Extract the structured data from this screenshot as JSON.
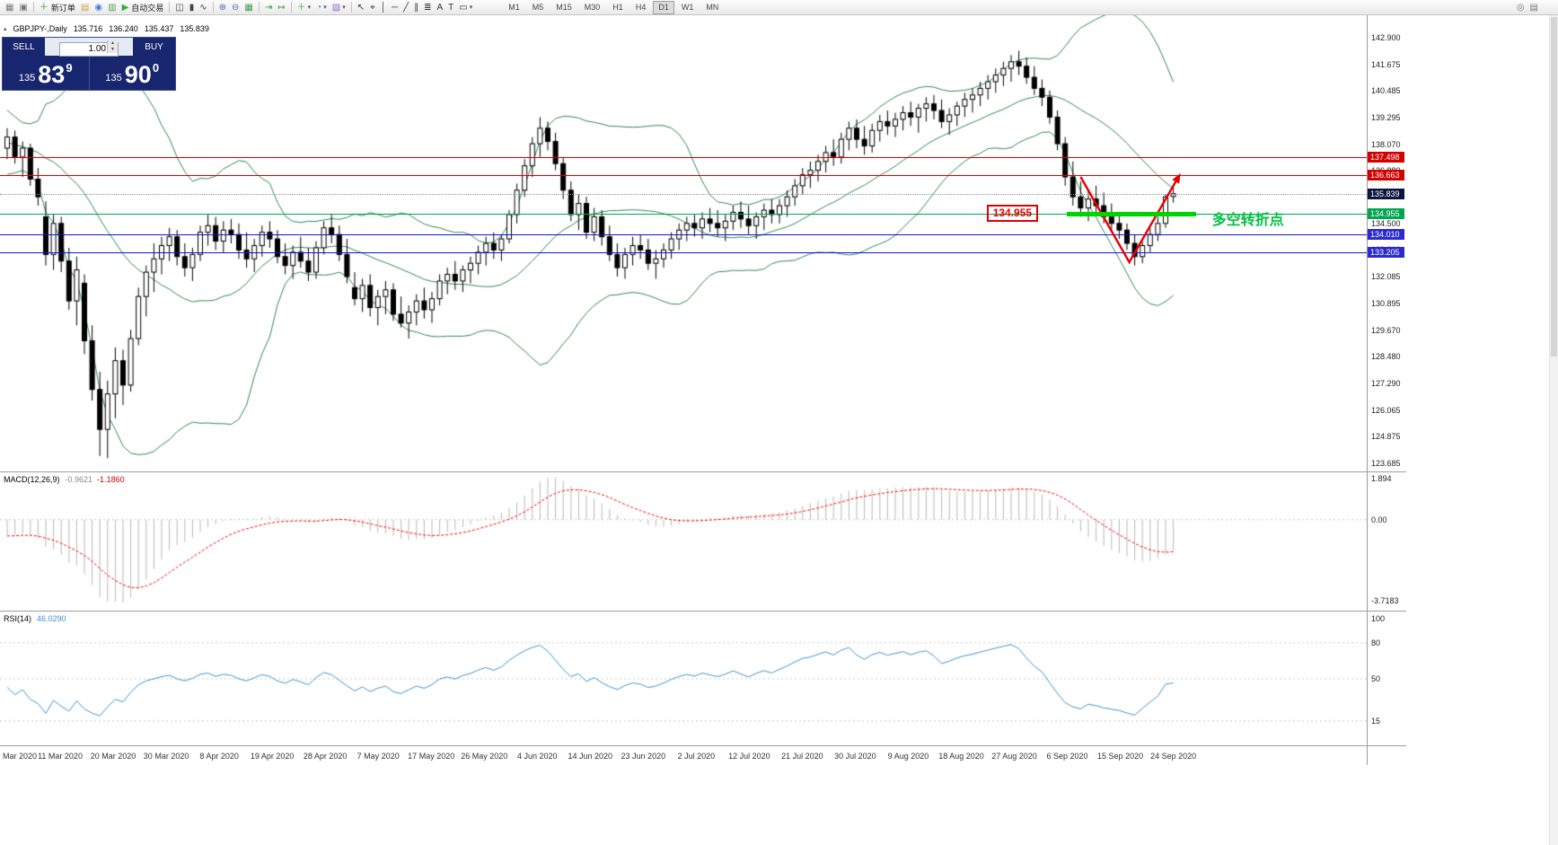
{
  "toolbar": {
    "items": [
      {
        "t": "btn",
        "name": "new-chart-icon",
        "g": "▦",
        "c": "#7a7a7a"
      },
      {
        "t": "btn",
        "name": "profiles-icon",
        "g": "▣",
        "c": "#7a7a7a"
      },
      {
        "t": "sep"
      },
      {
        "t": "txt",
        "name": "new-order-button",
        "g": "＋",
        "c": "#1f9d2f",
        "label": "新订单"
      },
      {
        "t": "btn",
        "name": "market-watch-icon",
        "g": "▤",
        "c": "#caa43c"
      },
      {
        "t": "btn",
        "name": "data-window-icon",
        "g": "◉",
        "c": "#4a78d6"
      },
      {
        "t": "btn",
        "name": "terminal-icon",
        "g": "▥",
        "c": "#58a058"
      },
      {
        "t": "txt",
        "name": "autotrade-button",
        "g": "▶",
        "c": "#2fae3e",
        "label": "自动交易"
      },
      {
        "t": "sep"
      },
      {
        "t": "btn",
        "name": "bar-chart-type-icon",
        "g": "◫",
        "c": "#444444"
      },
      {
        "t": "btn",
        "name": "candlestick-type-icon",
        "g": "▮",
        "c": "#444444"
      },
      {
        "t": "btn",
        "name": "line-chart-type-icon",
        "g": "∿",
        "c": "#444444"
      },
      {
        "t": "sep"
      },
      {
        "t": "btn",
        "name": "zoom-in-icon",
        "g": "⊕",
        "c": "#4a6fb5"
      },
      {
        "t": "btn",
        "name": "zoom-out-icon",
        "g": "⊖",
        "c": "#4a6fb5"
      },
      {
        "t": "btn",
        "name": "tile-windows-icon",
        "g": "▦",
        "c": "#3f9e3f"
      },
      {
        "t": "sep"
      },
      {
        "t": "btn",
        "name": "auto-scroll-icon",
        "g": "⇥",
        "c": "#3f9e3f"
      },
      {
        "t": "btn",
        "name": "chart-shift-icon",
        "g": "↦",
        "c": "#3f9e3f"
      },
      {
        "t": "sep"
      },
      {
        "t": "dd",
        "name": "indicators-menu",
        "g": "＋",
        "c": "#2fae3e"
      },
      {
        "t": "dd",
        "name": "periods-menu",
        "g": "◔",
        "c": "#4a78d6"
      },
      {
        "t": "dd",
        "name": "templates-menu",
        "g": "▨",
        "c": "#8a6fc0"
      },
      {
        "t": "sep"
      },
      {
        "t": "btn",
        "name": "cursor-tool-icon",
        "g": "↖",
        "c": "#333333"
      },
      {
        "t": "btn",
        "name": "crosshair-tool-icon",
        "g": "⌖",
        "c": "#333333"
      },
      {
        "t": "btn",
        "name": "vertical-line-tool-icon",
        "g": "│",
        "c": "#333333"
      },
      {
        "t": "btn",
        "name": "horizontal-line-tool-icon",
        "g": "─",
        "c": "#333333"
      },
      {
        "t": "btn",
        "name": "trendline-tool-icon",
        "g": "╱",
        "c": "#333333"
      },
      {
        "t": "btn",
        "name": "channel-tool-icon",
        "g": "∥",
        "c": "#333333"
      },
      {
        "t": "btn",
        "name": "fibonacci-tool-icon",
        "g": "≣",
        "c": "#333333"
      },
      {
        "t": "btn",
        "name": "text-tool-icon",
        "g": "A",
        "c": "#333333"
      },
      {
        "t": "btn",
        "name": "label-tool-icon",
        "g": "T",
        "c": "#333333"
      },
      {
        "t": "dd",
        "name": "shapes-menu",
        "g": "▭",
        "c": "#333333"
      }
    ],
    "timeframes": [
      "M1",
      "M5",
      "M15",
      "M30",
      "H1",
      "H4",
      "D1",
      "W1",
      "MN"
    ],
    "active_timeframe": "D1",
    "right_icons": [
      {
        "name": "search-icon",
        "g": "◎"
      },
      {
        "name": "alerts-icon",
        "g": "▤"
      }
    ]
  },
  "chart": {
    "symbol": "GBPJPY-,Daily",
    "open": "135.716",
    "high": "136.240",
    "low": "135.437",
    "close": "135.839"
  },
  "trade_panel": {
    "sell_label": "SELL",
    "buy_label": "BUY",
    "volume": "1.00",
    "bid_main": "135",
    "bid_big": "83",
    "bid_sup": "9",
    "ask_main": "135",
    "ask_big": "90",
    "ask_sup": "0"
  },
  "price_axis": {
    "labels": [
      "142.900",
      "141.675",
      "140.485",
      "139.295",
      "138.070",
      "136.880",
      "135.690",
      "134.500",
      "133.310",
      "132.085",
      "130.895",
      "129.670",
      "128.480",
      "127.290",
      "126.065",
      "124.875",
      "123.685"
    ]
  },
  "levels": [
    {
      "price": 137.498,
      "line_color": "#e00000",
      "line_style": "solid",
      "tag_bg": "#d40000"
    },
    {
      "price": 136.663,
      "line_color": "#e00000",
      "line_style": "solid",
      "tag_bg": "#d40000"
    },
    {
      "price": 135.839,
      "line_color": "#8a94a8",
      "line_style": "dotted",
      "tag_bg": "#0c1540"
    },
    {
      "price": 134.955,
      "line_color": "#00a651",
      "line_style": "solid",
      "tag_bg": "#00a651"
    },
    {
      "price": 134.01,
      "line_color": "#1515d0",
      "line_style": "solid",
      "tag_bg": "#2a2ad0"
    },
    {
      "price": 133.205,
      "line_color": "#1515d0",
      "line_style": "solid",
      "tag_bg": "#2a2ad0"
    }
  ],
  "annotations": {
    "price_box": {
      "text": "134.955",
      "price": 134.955,
      "index": 134.5
    },
    "support_segment": {
      "price": 134.955,
      "from_index": 137.2,
      "to_index": 154,
      "color": "#00d400"
    },
    "v_arrow": {
      "color": "#e80000",
      "points": [
        [
          139,
          136.6
        ],
        [
          145.3,
          132.75
        ],
        [
          151.6,
          136.56
        ]
      ]
    },
    "note": {
      "text": "多空转折点",
      "index": 156,
      "price": 134.85,
      "color": "#00bf40"
    }
  },
  "macd": {
    "label": "MACD(12,26,9)",
    "main_value": "-0.9621",
    "signal_value": "-1.1860",
    "axis_max": "1.894",
    "axis_zero": "0.00",
    "axis_min": "-3.7183"
  },
  "rsi": {
    "label": "RSI(14)",
    "value": "46.0290",
    "axis_labels": [
      "100",
      "80",
      "50",
      "15"
    ],
    "levels": [
      80,
      50,
      15
    ]
  },
  "date_axis": [
    "Mar 2020",
    "11 Mar 2020",
    "20 Mar 2020",
    "30 Mar 2020",
    "8 Apr 2020",
    "19 Apr 2020",
    "28 Apr 2020",
    "7 May 2020",
    "17 May 2020",
    "26 May 2020",
    "4 Jun 2020",
    "14 Jun 2020",
    "23 Jun 2020",
    "2 Jul 2020",
    "12 Jul 2020",
    "21 Jul 2020",
    "30 Jul 2020",
    "9 Aug 2020",
    "18 Aug 2020",
    "27 Aug 2020",
    "6 Sep 2020",
    "15 Sep 2020",
    "24 Sep 2020"
  ],
  "chart_data": {
    "type": "candlestick",
    "symbol": "GBPJPY",
    "timeframe": "Daily",
    "price_max": 143.9,
    "price_min": 123.3,
    "overlays": {
      "bollinger": {
        "period": 20,
        "deviation": 2,
        "color": "#2e8b57"
      }
    },
    "indicators": [
      {
        "type": "macd",
        "fast": 12,
        "slow": 26,
        "signal": 9,
        "histogram_color": "#b9b9b9",
        "signal_color": "#ff0000"
      },
      {
        "type": "rsi",
        "period": 14,
        "color": "#4095d5"
      }
    ],
    "prehistory_closes": [
      140.2,
      139.8,
      139.5,
      139,
      138.6,
      138.2,
      137.9,
      138.4,
      138.8,
      138.5,
      138.1,
      137.8,
      137.5,
      137.9,
      138.2,
      137.8,
      137.5,
      137.2,
      136.9,
      137.3
    ],
    "candles": [
      [
        137.9,
        138.8,
        137.4,
        138.4
      ],
      [
        138.4,
        138.7,
        137.2,
        137.5
      ],
      [
        137.5,
        138.2,
        136.6,
        137.9
      ],
      [
        137.9,
        138.1,
        136.2,
        136.5
      ],
      [
        136.5,
        137,
        135.3,
        135.7
      ],
      [
        134.8,
        135.5,
        132.6,
        133.1
      ],
      [
        133.1,
        134.9,
        132.4,
        134.5
      ],
      [
        134.5,
        134.8,
        132.3,
        132.8
      ],
      [
        132.8,
        133.4,
        130.6,
        131
      ],
      [
        131,
        133,
        129.9,
        132.4
      ],
      [
        131.8,
        132.2,
        128.6,
        129.2
      ],
      [
        129.2,
        129.9,
        126.5,
        127
      ],
      [
        127,
        127.8,
        124,
        125.2
      ],
      [
        125.2,
        127.4,
        123.9,
        126.8
      ],
      [
        126.8,
        128.9,
        125.7,
        128.3
      ],
      [
        128.3,
        128.8,
        126.3,
        127.2
      ],
      [
        127.2,
        129.7,
        126.9,
        129.3
      ],
      [
        129.3,
        131.6,
        129,
        131.2
      ],
      [
        131.2,
        132.6,
        130.3,
        132.3
      ],
      [
        132.3,
        133.6,
        131.4,
        132.9
      ],
      [
        132.9,
        133.9,
        132.2,
        133.5
      ],
      [
        133.5,
        134.3,
        132.8,
        133.9
      ],
      [
        133.9,
        134.2,
        132.6,
        133
      ],
      [
        133,
        133.6,
        132.1,
        132.5
      ],
      [
        132.5,
        133.4,
        131.9,
        133.1
      ],
      [
        133.1,
        134.4,
        132.8,
        134.1
      ],
      [
        134.1,
        134.9,
        133.5,
        134.4
      ],
      [
        134.4,
        134.8,
        133.3,
        133.7
      ],
      [
        133.7,
        134.6,
        133.2,
        134.2
      ],
      [
        134.2,
        134.7,
        133.6,
        134
      ],
      [
        134,
        134.5,
        132.9,
        133.3
      ],
      [
        133.3,
        134.1,
        132.5,
        132.9
      ],
      [
        132.9,
        133.8,
        132.3,
        133.5
      ],
      [
        133.5,
        134.4,
        133,
        134.1
      ],
      [
        134.1,
        134.6,
        133.4,
        133.8
      ],
      [
        133.8,
        134.2,
        132.7,
        133
      ],
      [
        133,
        133.6,
        132.2,
        132.6
      ],
      [
        132.6,
        133.5,
        132,
        133.2
      ],
      [
        133.2,
        133.9,
        132.5,
        132.8
      ],
      [
        132.8,
        133.4,
        131.9,
        132.3
      ],
      [
        132.3,
        133.7,
        132,
        133.4
      ],
      [
        133.4,
        134.6,
        133.1,
        134.3
      ],
      [
        134.3,
        134.9,
        133.6,
        134
      ],
      [
        134,
        134.4,
        132.8,
        133.1
      ],
      [
        133.1,
        133.8,
        131.8,
        132.1
      ],
      [
        131.6,
        132.3,
        130.8,
        131.1
      ],
      [
        131.1,
        132,
        130.5,
        131.7
      ],
      [
        131.7,
        132.2,
        130.3,
        130.7
      ],
      [
        130.7,
        131.5,
        129.9,
        131.2
      ],
      [
        131.2,
        131.9,
        130.4,
        131.5
      ],
      [
        131.5,
        131.8,
        130.1,
        130.4
      ],
      [
        130.4,
        131.2,
        129.8,
        130
      ],
      [
        130,
        130.8,
        129.3,
        130.5
      ],
      [
        130.5,
        131.3,
        129.9,
        131
      ],
      [
        131,
        131.6,
        130.2,
        130.6
      ],
      [
        130.6,
        131.4,
        130,
        131.1
      ],
      [
        131.1,
        132.2,
        130.8,
        131.9
      ],
      [
        131.9,
        132.5,
        131.3,
        132.2
      ],
      [
        132.2,
        132.8,
        131.5,
        131.9
      ],
      [
        131.9,
        132.6,
        131.4,
        132.4
      ],
      [
        132.4,
        133,
        131.8,
        132.7
      ],
      [
        132.7,
        133.5,
        132.2,
        133.2
      ],
      [
        133.2,
        133.9,
        132.6,
        133.6
      ],
      [
        133.6,
        134.1,
        132.9,
        133.3
      ],
      [
        133.3,
        134,
        132.8,
        133.8
      ],
      [
        133.8,
        135.1,
        133.6,
        134.9
      ],
      [
        134.9,
        136.3,
        134.5,
        136
      ],
      [
        136,
        137.4,
        135.7,
        137.1
      ],
      [
        137.1,
        138.4,
        136.6,
        138.1
      ],
      [
        138.1,
        139.3,
        137.5,
        138.8
      ],
      [
        138.8,
        139.1,
        137.8,
        138.2
      ],
      [
        138.2,
        138.6,
        136.9,
        137.2
      ],
      [
        137.2,
        137.5,
        135.6,
        136
      ],
      [
        136,
        136.4,
        134.6,
        134.9
      ],
      [
        134.9,
        135.8,
        134.2,
        135.4
      ],
      [
        135.4,
        135.7,
        133.8,
        134.1
      ],
      [
        134.1,
        135.2,
        133.7,
        134.8
      ],
      [
        134.8,
        135.1,
        133.5,
        133.9
      ],
      [
        133.9,
        134.4,
        132.8,
        133.1
      ],
      [
        133.1,
        133.6,
        132.1,
        132.5
      ],
      [
        132.5,
        133.4,
        132,
        133.1
      ],
      [
        133.1,
        133.9,
        132.6,
        133.5
      ],
      [
        133.5,
        134,
        132.9,
        133.3
      ],
      [
        133.3,
        133.8,
        132.4,
        132.7
      ],
      [
        132.7,
        133.3,
        132,
        132.9
      ],
      [
        132.9,
        133.6,
        132.5,
        133.3
      ],
      [
        133.3,
        134.1,
        132.9,
        133.8
      ],
      [
        133.8,
        134.5,
        133.3,
        134.2
      ],
      [
        134.2,
        134.8,
        133.7,
        134.5
      ],
      [
        134.5,
        134.9,
        133.9,
        134.3
      ],
      [
        134.3,
        135,
        133.8,
        134.7
      ],
      [
        134.7,
        135.2,
        134.1,
        134.5
      ],
      [
        134.5,
        135.1,
        133.9,
        134.3
      ],
      [
        134.3,
        134.9,
        133.7,
        134.6
      ],
      [
        134.6,
        135.3,
        134.2,
        135
      ],
      [
        135,
        135.5,
        134.3,
        134.7
      ],
      [
        134.7,
        135.3,
        134,
        134.4
      ],
      [
        134.4,
        135,
        133.8,
        134.8
      ],
      [
        134.8,
        135.4,
        134.2,
        135.1
      ],
      [
        135.1,
        135.6,
        134.5,
        134.9
      ],
      [
        134.9,
        135.6,
        134.5,
        135.3
      ],
      [
        135.3,
        136,
        134.8,
        135.7
      ],
      [
        135.7,
        136.5,
        135.3,
        136.2
      ],
      [
        136.2,
        137,
        135.8,
        136.7
      ],
      [
        136.7,
        137.3,
        136.1,
        136.9
      ],
      [
        136.9,
        137.6,
        136.4,
        137.3
      ],
      [
        137.3,
        138,
        136.8,
        137.7
      ],
      [
        137.7,
        138.3,
        137.1,
        137.5
      ],
      [
        137.5,
        138.6,
        137.2,
        138.3
      ],
      [
        138.3,
        139.1,
        137.8,
        138.8
      ],
      [
        138.8,
        139.2,
        137.9,
        138.3
      ],
      [
        138.3,
        138.9,
        137.6,
        138
      ],
      [
        138,
        139,
        137.7,
        138.7
      ],
      [
        138.7,
        139.4,
        138.2,
        139.1
      ],
      [
        139.1,
        139.6,
        138.5,
        138.9
      ],
      [
        138.9,
        139.5,
        138.4,
        139.2
      ],
      [
        139.2,
        139.8,
        138.7,
        139.5
      ],
      [
        139.5,
        140,
        138.9,
        139.3
      ],
      [
        139.3,
        139.9,
        138.6,
        139.7
      ],
      [
        139.7,
        140.2,
        139.1,
        139.9
      ],
      [
        139.9,
        140.3,
        139.2,
        139.6
      ],
      [
        139.6,
        140.1,
        138.8,
        139.1
      ],
      [
        139.1,
        139.7,
        138.5,
        139.4
      ],
      [
        139.4,
        140,
        138.9,
        139.8
      ],
      [
        139.8,
        140.4,
        139.3,
        140.1
      ],
      [
        140.1,
        140.6,
        139.5,
        140.3
      ],
      [
        140.3,
        140.9,
        139.8,
        140.6
      ],
      [
        140.6,
        141.2,
        140.1,
        140.9
      ],
      [
        140.9,
        141.5,
        140.4,
        141.2
      ],
      [
        141.2,
        141.8,
        140.7,
        141.5
      ],
      [
        141.5,
        142.1,
        140.9,
        141.8
      ],
      [
        141.8,
        142.3,
        141.2,
        141.6
      ],
      [
        141.6,
        142,
        140.8,
        141.1
      ],
      [
        141.1,
        141.6,
        140.3,
        140.6
      ],
      [
        140.6,
        141,
        139.8,
        140.2
      ],
      [
        140.2,
        140.5,
        139,
        139.3
      ],
      [
        139.3,
        139.6,
        137.8,
        138.1
      ],
      [
        138.1,
        138.4,
        136.2,
        136.6
      ],
      [
        136.6,
        137.3,
        135.3,
        135.7
      ],
      [
        135.7,
        136.4,
        134.8,
        135.2
      ],
      [
        135.2,
        136,
        134.6,
        135.6
      ],
      [
        135.6,
        136.2,
        134.9,
        135.3
      ],
      [
        135.3,
        135.9,
        134.5,
        134.8
      ],
      [
        134.8,
        135.4,
        134.1,
        134.5
      ],
      [
        134.5,
        135,
        133.8,
        134.2
      ],
      [
        134.2,
        134.5,
        133.3,
        133.6
      ],
      [
        133.6,
        134,
        132.6,
        133
      ],
      [
        133,
        133.7,
        132.7,
        133.5
      ],
      [
        133.5,
        134.3,
        133.2,
        134
      ],
      [
        134,
        134.8,
        133.7,
        134.5
      ],
      [
        134.5,
        135.8,
        134.3,
        135.7
      ],
      [
        135.716,
        136.24,
        135.437,
        135.839
      ]
    ]
  }
}
